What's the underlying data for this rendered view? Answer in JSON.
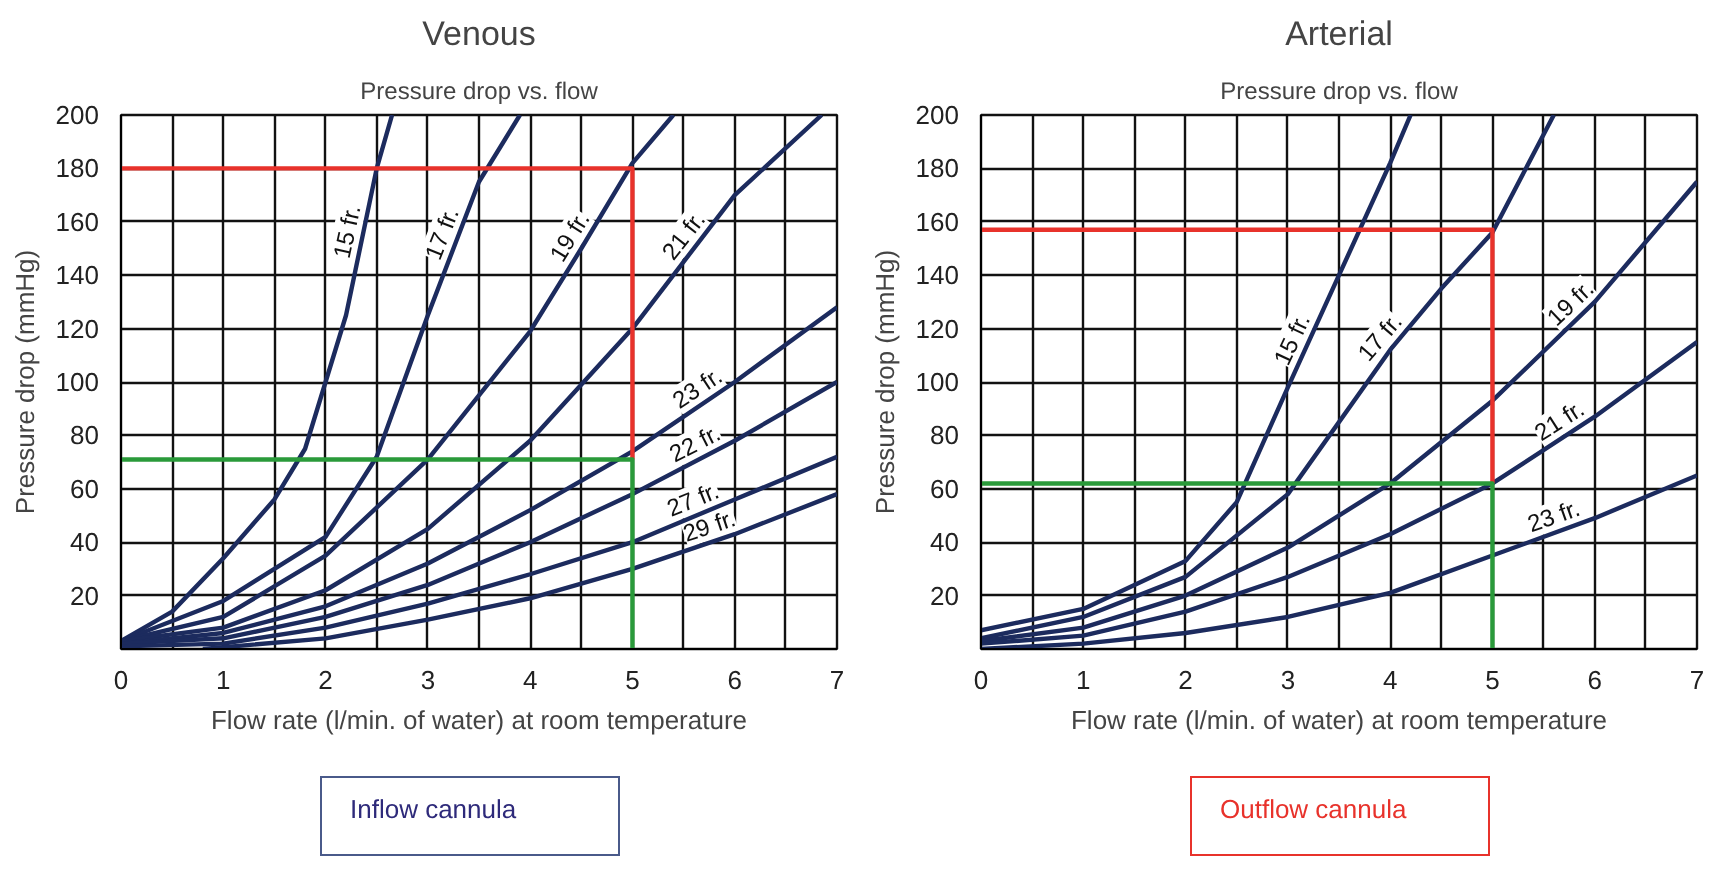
{
  "chart_data": [
    {
      "type": "line",
      "title": "Venous",
      "subtitle": "Pressure drop vs. flow",
      "xlabel": "Flow rate (l/min. of water) at room temperature",
      "ylabel": "Pressure drop (mmHg)",
      "xlim": [
        0,
        7
      ],
      "ylim": [
        0,
        200
      ],
      "xticks": [
        0,
        {
          "value": 0.5,
          "label": null
        },
        1,
        {
          "value": 1.5,
          "label": null
        },
        2,
        {
          "value": 2.5,
          "label": null
        },
        3,
        {
          "value": 3.5,
          "label": null
        },
        4,
        {
          "value": 4.5,
          "label": null
        },
        5,
        {
          "value": 5.5,
          "label": null
        },
        6,
        {
          "value": 6.5,
          "label": null
        },
        7
      ],
      "yticks": [
        20,
        40,
        60,
        80,
        100,
        120,
        140,
        160,
        180,
        200
      ],
      "grid": true,
      "series": [
        {
          "name": "15 fr.",
          "color": "#1c2b5e",
          "x": [
            0,
            0.5,
            1,
            1.5,
            1.8,
            2,
            2.2,
            2.5,
            2.65
          ],
          "values": [
            3,
            14,
            34,
            56,
            75,
            100,
            125,
            180,
            200
          ]
        },
        {
          "name": "17 fr.",
          "color": "#1c2b5e",
          "x": [
            0,
            1,
            2,
            2.5,
            3,
            3.5,
            3.9
          ],
          "values": [
            3,
            18,
            42,
            72,
            125,
            175,
            200
          ]
        },
        {
          "name": "19 fr.",
          "color": "#1c2b5e",
          "x": [
            0,
            1,
            2,
            3,
            4,
            4.5,
            5,
            5.4
          ],
          "values": [
            3,
            12,
            35,
            71,
            119,
            150,
            182,
            200
          ]
        },
        {
          "name": "21 fr.",
          "color": "#1c2b5e",
          "x": [
            0,
            1,
            2,
            3,
            4,
            5,
            6,
            6.85
          ],
          "values": [
            3,
            8,
            22,
            45,
            78,
            120,
            170,
            200
          ]
        },
        {
          "name": "23 fr.",
          "color": "#1c2b5e",
          "x": [
            0,
            1,
            2,
            3,
            4,
            5,
            6,
            7
          ],
          "values": [
            2,
            6,
            16,
            32,
            52,
            74,
            100,
            128
          ]
        },
        {
          "name": "22 fr.",
          "color": "#1c2b5e",
          "x": [
            0,
            1,
            2,
            3,
            4,
            5,
            6,
            7
          ],
          "values": [
            2,
            4,
            12,
            24,
            40,
            58,
            78,
            100
          ]
        },
        {
          "name": "27 fr.",
          "color": "#1c2b5e",
          "x": [
            0,
            1,
            2,
            3,
            4,
            5,
            6,
            7
          ],
          "values": [
            1,
            2,
            8,
            17,
            28,
            40,
            56,
            72
          ]
        },
        {
          "name": "29 fr.",
          "color": "#1c2b5e",
          "x": [
            0.8,
            2,
            3,
            4,
            5,
            6,
            7
          ],
          "values": [
            0,
            4,
            11,
            19,
            30,
            43,
            58
          ]
        },
        {
          "color": "#e8322b",
          "x": [
            0,
            5,
            5
          ],
          "values": [
            180,
            180,
            71
          ]
        },
        {
          "color": "#2a9a3a",
          "x": [
            0,
            5,
            5
          ],
          "values": [
            71,
            71,
            0
          ]
        }
      ],
      "annotations": [
        "Inflow cannula"
      ]
    },
    {
      "type": "line",
      "title": "Arterial",
      "subtitle": "Pressure drop vs. flow",
      "xlabel": "Flow rate (l/min. of water) at room temperature",
      "ylabel": "Pressure drop (mmHg)",
      "xlim": [
        0,
        7
      ],
      "ylim": [
        0,
        200
      ],
      "xticks": [
        0,
        {
          "value": 0.5,
          "label": null
        },
        1,
        {
          "value": 1.5,
          "label": null
        },
        2,
        {
          "value": 2.5,
          "label": null
        },
        3,
        {
          "value": 3.5,
          "label": null
        },
        4,
        {
          "value": 4.5,
          "label": null
        },
        5,
        {
          "value": 5.5,
          "label": null
        },
        6,
        {
          "value": 6.5,
          "label": null
        },
        7
      ],
      "yticks": [
        20,
        40,
        60,
        80,
        100,
        120,
        140,
        160,
        180,
        200
      ],
      "grid": true,
      "series": [
        {
          "name": "15 fr.",
          "color": "#1c2b5e",
          "x": [
            0,
            1,
            2,
            2.5,
            3,
            3.5,
            4,
            4.2
          ],
          "values": [
            7,
            15,
            33,
            55,
            98,
            140,
            182,
            200
          ]
        },
        {
          "name": "17 fr.",
          "color": "#1c2b5e",
          "x": [
            0,
            1,
            2,
            3,
            4,
            4.5,
            5,
            5.6
          ],
          "values": [
            4,
            12,
            27,
            58,
            112,
            135,
            156,
            200
          ]
        },
        {
          "name": "19 fr.",
          "color": "#1c2b5e",
          "x": [
            0,
            1,
            2,
            3,
            4,
            5,
            6,
            7
          ],
          "values": [
            3,
            8,
            20,
            38,
            62,
            93,
            130,
            175
          ]
        },
        {
          "name": "21 fr.",
          "color": "#1c2b5e",
          "x": [
            0,
            1,
            2,
            3,
            4,
            5,
            6,
            7
          ],
          "values": [
            2,
            5,
            14,
            27,
            43,
            62,
            87,
            115
          ]
        },
        {
          "name": "23 fr.",
          "color": "#1c2b5e",
          "x": [
            0,
            1,
            2,
            3,
            4,
            5,
            6,
            7
          ],
          "values": [
            0,
            2,
            6,
            12,
            21,
            35,
            49,
            65
          ]
        },
        {
          "color": "#e8322b",
          "x": [
            0,
            5,
            5
          ],
          "values": [
            157,
            157,
            62
          ]
        },
        {
          "color": "#2a9a3a",
          "x": [
            0,
            5,
            5
          ],
          "values": [
            62,
            62,
            0
          ]
        }
      ],
      "annotations": [
        "Outflow cannula"
      ]
    }
  ]
}
